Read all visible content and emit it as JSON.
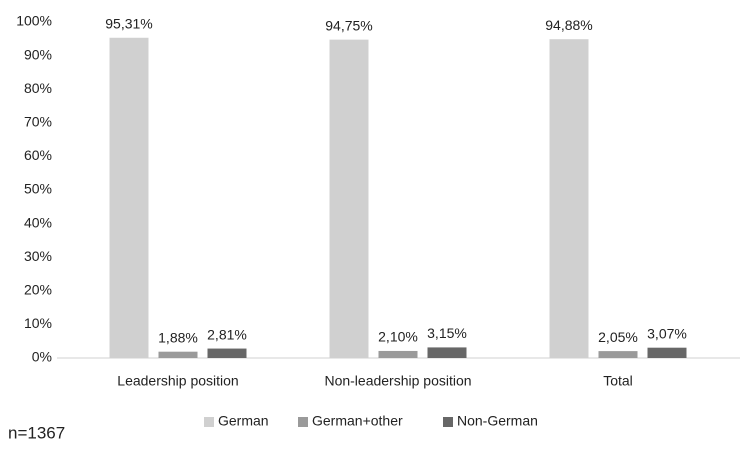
{
  "chart_data": {
    "type": "bar",
    "categories": [
      "Leadership position",
      "Non-leadership position",
      "Total"
    ],
    "series": [
      {
        "name": "German",
        "color": "#d0d0d0",
        "values": [
          95.31,
          94.75,
          94.88
        ],
        "value_labels": [
          "95,31%",
          "94,75%",
          "94,88%"
        ]
      },
      {
        "name": "German+other",
        "color": "#9a9a9a",
        "values": [
          1.88,
          2.1,
          2.05
        ],
        "value_labels": [
          "1,88%",
          "2,10%",
          "2,05%"
        ]
      },
      {
        "name": "Non-German",
        "color": "#676767",
        "values": [
          2.81,
          3.15,
          3.07
        ],
        "value_labels": [
          "2,81%",
          "3,15%",
          "3,07%"
        ]
      }
    ],
    "ylim": [
      0,
      100
    ],
    "yticks": [
      {
        "value": 0,
        "label": "0%"
      },
      {
        "value": 10,
        "label": "10%"
      },
      {
        "value": 20,
        "label": "20%"
      },
      {
        "value": 30,
        "label": "30%"
      },
      {
        "value": 40,
        "label": "40%"
      },
      {
        "value": 50,
        "label": "50%"
      },
      {
        "value": 60,
        "label": "60%"
      },
      {
        "value": 70,
        "label": "70%"
      },
      {
        "value": 80,
        "label": "80%"
      },
      {
        "value": 90,
        "label": "90%"
      },
      {
        "value": 100,
        "label": "100%"
      }
    ],
    "grid": false,
    "legend": "bottom",
    "annotation": "n=1367"
  }
}
